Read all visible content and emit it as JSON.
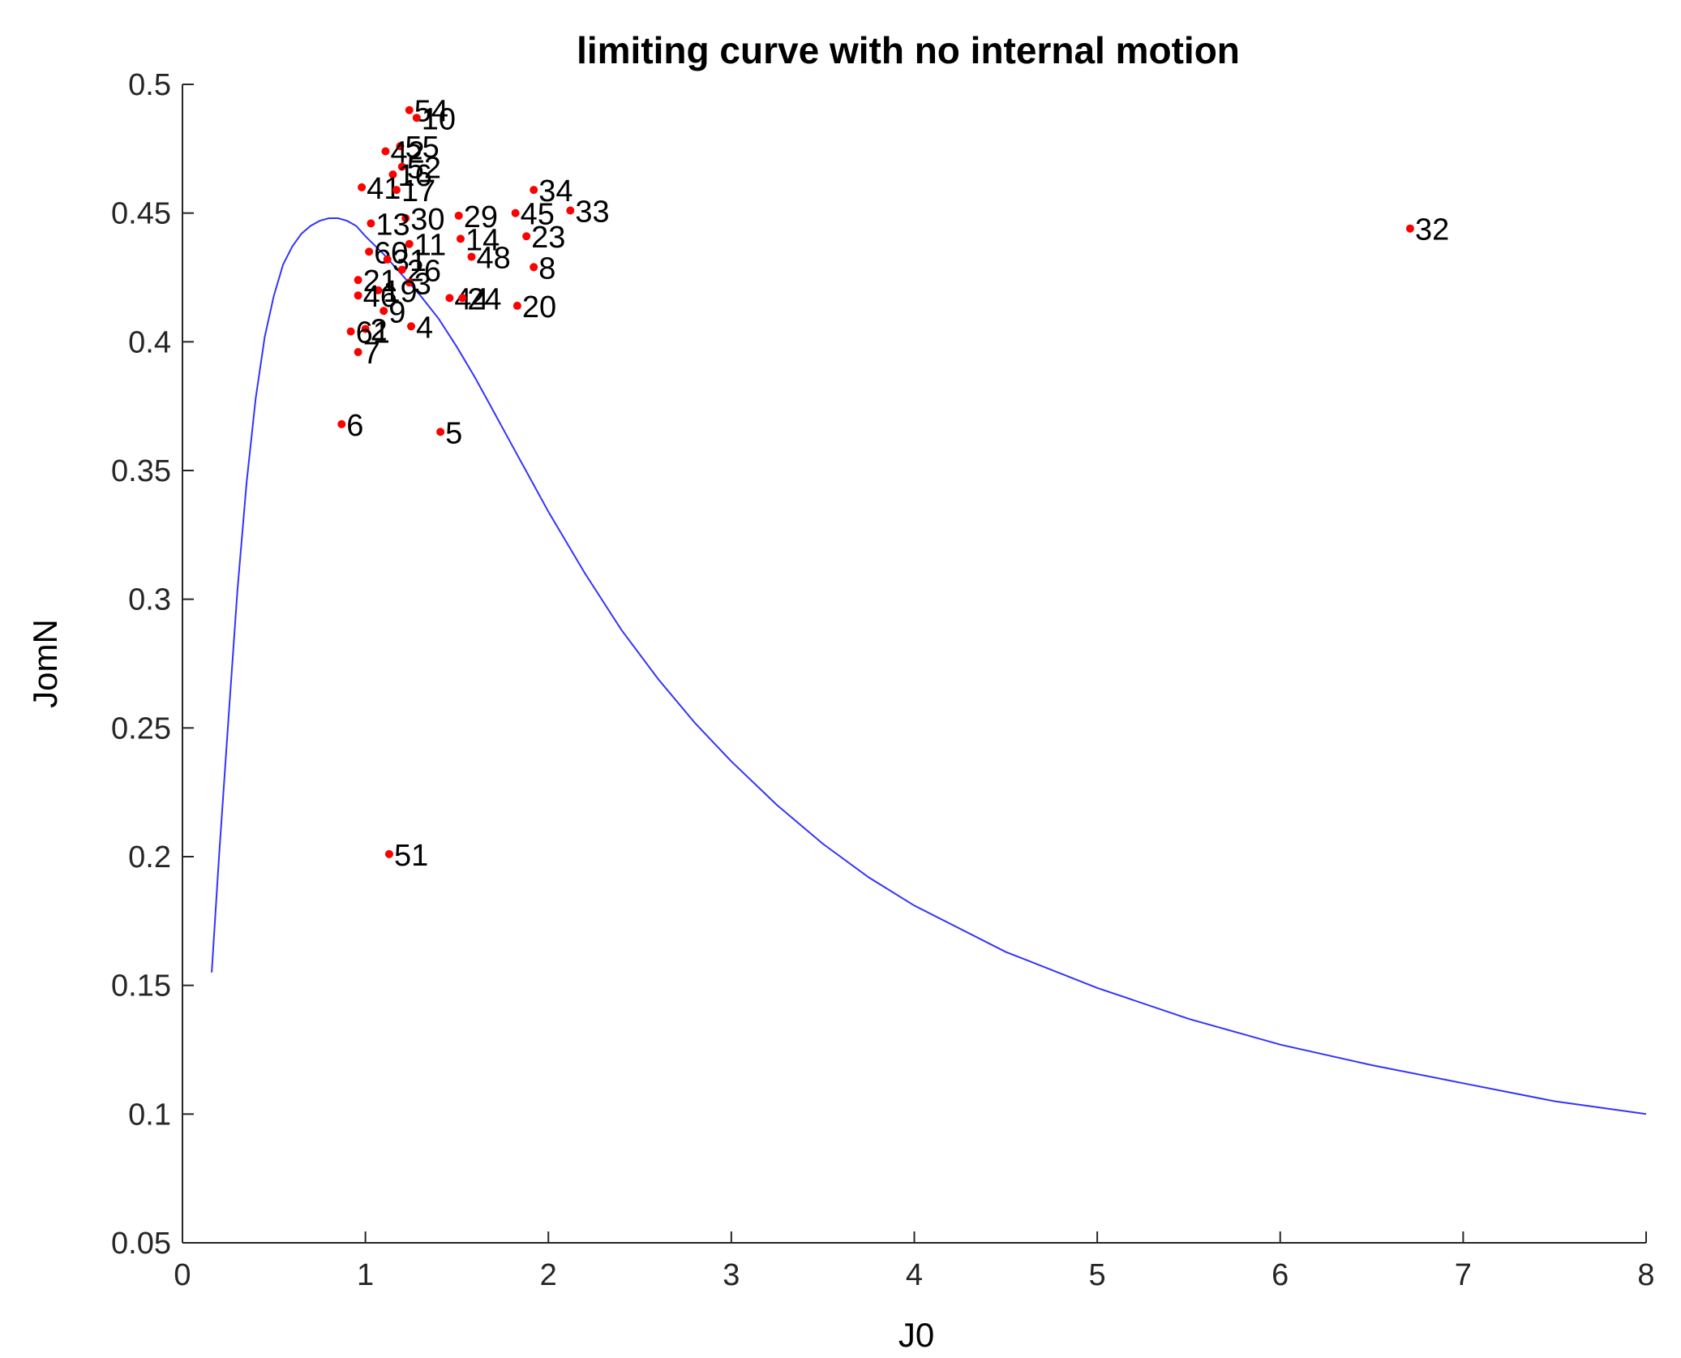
{
  "chart_data": {
    "type": "scatter",
    "title": "limiting curve with no internal motion",
    "xlabel": "J0",
    "ylabel": "JomN",
    "xlim": [
      0,
      8
    ],
    "ylim": [
      0.05,
      0.5
    ],
    "xticks": [
      "0",
      "1",
      "2",
      "3",
      "4",
      "5",
      "6",
      "7",
      "8"
    ],
    "yticks": [
      "0.05",
      "0.1",
      "0.15",
      "0.2",
      "0.25",
      "0.3",
      "0.35",
      "0.4",
      "0.45",
      "0.5"
    ],
    "grid": false,
    "colors": {
      "curve": "#3333ff",
      "points": "#ff0000",
      "axis": "#262626"
    },
    "curve": {
      "x": [
        0.16,
        0.2,
        0.25,
        0.3,
        0.35,
        0.4,
        0.45,
        0.5,
        0.55,
        0.6,
        0.65,
        0.7,
        0.75,
        0.8,
        0.85,
        0.9,
        0.95,
        1.0,
        1.1,
        1.2,
        1.3,
        1.4,
        1.5,
        1.6,
        1.7,
        1.8,
        1.9,
        2.0,
        2.2,
        2.4,
        2.6,
        2.8,
        3.0,
        3.25,
        3.5,
        3.75,
        4.0,
        4.5,
        5.0,
        5.5,
        6.0,
        6.5,
        7.0,
        7.5,
        8.0
      ],
      "y": [
        0.155,
        0.2,
        0.252,
        0.303,
        0.345,
        0.378,
        0.402,
        0.418,
        0.43,
        0.437,
        0.442,
        0.445,
        0.447,
        0.448,
        0.448,
        0.447,
        0.445,
        0.441,
        0.434,
        0.426,
        0.418,
        0.409,
        0.398,
        0.386,
        0.373,
        0.36,
        0.347,
        0.334,
        0.31,
        0.288,
        0.269,
        0.252,
        0.237,
        0.22,
        0.205,
        0.192,
        0.181,
        0.163,
        0.149,
        0.137,
        0.127,
        0.119,
        0.112,
        0.105,
        0.1
      ]
    },
    "points": [
      {
        "label": "54",
        "x": 1.24,
        "y": 0.49
      },
      {
        "label": "10",
        "x": 1.28,
        "y": 0.487
      },
      {
        "label": "55",
        "x": 1.19,
        "y": 0.476
      },
      {
        "label": "42",
        "x": 1.11,
        "y": 0.474
      },
      {
        "label": "52",
        "x": 1.2,
        "y": 0.468
      },
      {
        "label": "16",
        "x": 1.15,
        "y": 0.465
      },
      {
        "label": "41",
        "x": 0.98,
        "y": 0.46
      },
      {
        "label": "17",
        "x": 1.17,
        "y": 0.459
      },
      {
        "label": "34",
        "x": 1.92,
        "y": 0.459
      },
      {
        "label": "33",
        "x": 2.12,
        "y": 0.451
      },
      {
        "label": "45",
        "x": 1.82,
        "y": 0.45
      },
      {
        "label": "29",
        "x": 1.51,
        "y": 0.449
      },
      {
        "label": "30",
        "x": 1.22,
        "y": 0.448
      },
      {
        "label": "13",
        "x": 1.03,
        "y": 0.446
      },
      {
        "label": "32",
        "x": 6.71,
        "y": 0.444
      },
      {
        "label": "23",
        "x": 1.88,
        "y": 0.441
      },
      {
        "label": "14",
        "x": 1.52,
        "y": 0.44
      },
      {
        "label": "11",
        "x": 1.24,
        "y": 0.438
      },
      {
        "label": "60",
        "x": 1.02,
        "y": 0.435
      },
      {
        "label": "48",
        "x": 1.58,
        "y": 0.433
      },
      {
        "label": "31",
        "x": 1.12,
        "y": 0.432
      },
      {
        "label": "8",
        "x": 1.92,
        "y": 0.429
      },
      {
        "label": "26",
        "x": 1.2,
        "y": 0.428
      },
      {
        "label": "21",
        "x": 0.96,
        "y": 0.424
      },
      {
        "label": "3",
        "x": 1.24,
        "y": 0.423
      },
      {
        "label": "19",
        "x": 1.07,
        "y": 0.42
      },
      {
        "label": "46",
        "x": 0.96,
        "y": 0.418
      },
      {
        "label": "44",
        "x": 1.46,
        "y": 0.417
      },
      {
        "label": "24",
        "x": 1.53,
        "y": 0.417
      },
      {
        "label": "20",
        "x": 1.83,
        "y": 0.414
      },
      {
        "label": "9",
        "x": 1.1,
        "y": 0.412
      },
      {
        "label": "4",
        "x": 1.25,
        "y": 0.406
      },
      {
        "label": "2",
        "x": 1.0,
        "y": 0.405
      },
      {
        "label": "61",
        "x": 0.92,
        "y": 0.404
      },
      {
        "label": "7",
        "x": 0.96,
        "y": 0.396
      },
      {
        "label": "6",
        "x": 0.87,
        "y": 0.368
      },
      {
        "label": "5",
        "x": 1.41,
        "y": 0.365
      },
      {
        "label": "51",
        "x": 1.13,
        "y": 0.201
      }
    ]
  }
}
